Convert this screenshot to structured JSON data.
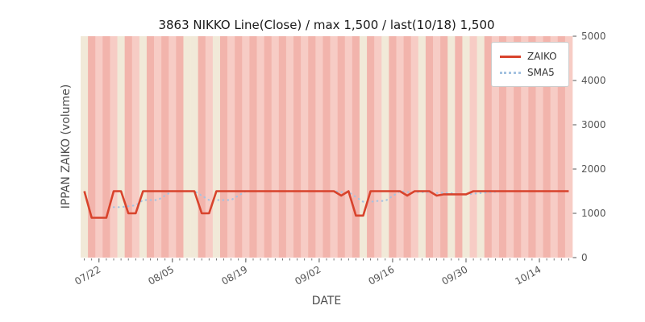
{
  "figure": {
    "title": "3863 NIKKO Line(Close) / max 1,500 / last(10/18) 1,500",
    "xlabel": "DATE",
    "ylabel": "IPPAN ZAIKO (volume)",
    "background": "#ffffff"
  },
  "legend": {
    "items": [
      {
        "label": "ZAIKO",
        "color": "#d8432c",
        "style": "solid"
      },
      {
        "label": "SMA5",
        "color": "#a5c3e1",
        "style": "dotted"
      }
    ]
  },
  "chart_data": {
    "type": "line",
    "title": "3863 NIKKO Line(Close) / max 1,500 / last(10/18) 1,500",
    "xlabel": "DATE",
    "ylabel": "IPPAN ZAIKO (volume)",
    "ylim": [
      0,
      5000
    ],
    "yticks": [
      0,
      1000,
      2000,
      3000,
      4000,
      5000
    ],
    "xticks": [
      "07/22",
      "08/05",
      "08/19",
      "09/02",
      "09/16",
      "09/30",
      "10/14"
    ],
    "xtick_indices": [
      2,
      12,
      22,
      32,
      42,
      52,
      62
    ],
    "legend_position": "upper right",
    "grid": false,
    "dates": [
      "07/18",
      "07/19",
      "07/22",
      "07/23",
      "07/24",
      "07/25",
      "07/26",
      "07/29",
      "07/30",
      "07/31",
      "08/01",
      "08/02",
      "08/05",
      "08/06",
      "08/07",
      "08/08",
      "08/09",
      "08/12",
      "08/13",
      "08/14",
      "08/15",
      "08/16",
      "08/19",
      "08/20",
      "08/21",
      "08/22",
      "08/23",
      "08/26",
      "08/27",
      "08/28",
      "08/29",
      "08/30",
      "09/02",
      "09/03",
      "09/04",
      "09/05",
      "09/06",
      "09/09",
      "09/10",
      "09/11",
      "09/12",
      "09/13",
      "09/16",
      "09/17",
      "09/18",
      "09/19",
      "09/20",
      "09/23",
      "09/24",
      "09/25",
      "09/26",
      "09/27",
      "09/30",
      "10/01",
      "10/02",
      "10/03",
      "10/04",
      "10/07",
      "10/08",
      "10/09",
      "10/10",
      "10/11",
      "10/14",
      "10/15",
      "10/16",
      "10/17",
      "10/18"
    ],
    "series": [
      {
        "name": "ZAIKO",
        "color": "#d8432c",
        "style": "solid",
        "values": [
          1500,
          900,
          900,
          900,
          1500,
          1500,
          1000,
          1000,
          1500,
          1500,
          1500,
          1500,
          1500,
          1500,
          1500,
          1500,
          1000,
          1000,
          1500,
          1500,
          1500,
          1500,
          1500,
          1500,
          1500,
          1500,
          1500,
          1500,
          1500,
          1500,
          1500,
          1500,
          1500,
          1500,
          1500,
          1400,
          1500,
          950,
          950,
          1500,
          1500,
          1500,
          1500,
          1500,
          1400,
          1500,
          1500,
          1500,
          1400,
          1430,
          1430,
          1430,
          1430,
          1500,
          1500,
          1500,
          1500,
          1500,
          1500,
          1500,
          1500,
          1500,
          1500,
          1500,
          1500,
          1500,
          1500
        ]
      },
      {
        "name": "SMA5",
        "color": "#a5c3e1",
        "style": "dotted",
        "window": 5,
        "derived_from": "ZAIKO"
      }
    ],
    "bands": "cababcabcababaccabcabababababababababacabcababcabacacbcabababababababab",
    "band_colors": {
      "a": "#f2b4ac",
      "b": "#f7ccc5",
      "c": "#f1e9d8"
    },
    "tick_color": "#555555"
  }
}
